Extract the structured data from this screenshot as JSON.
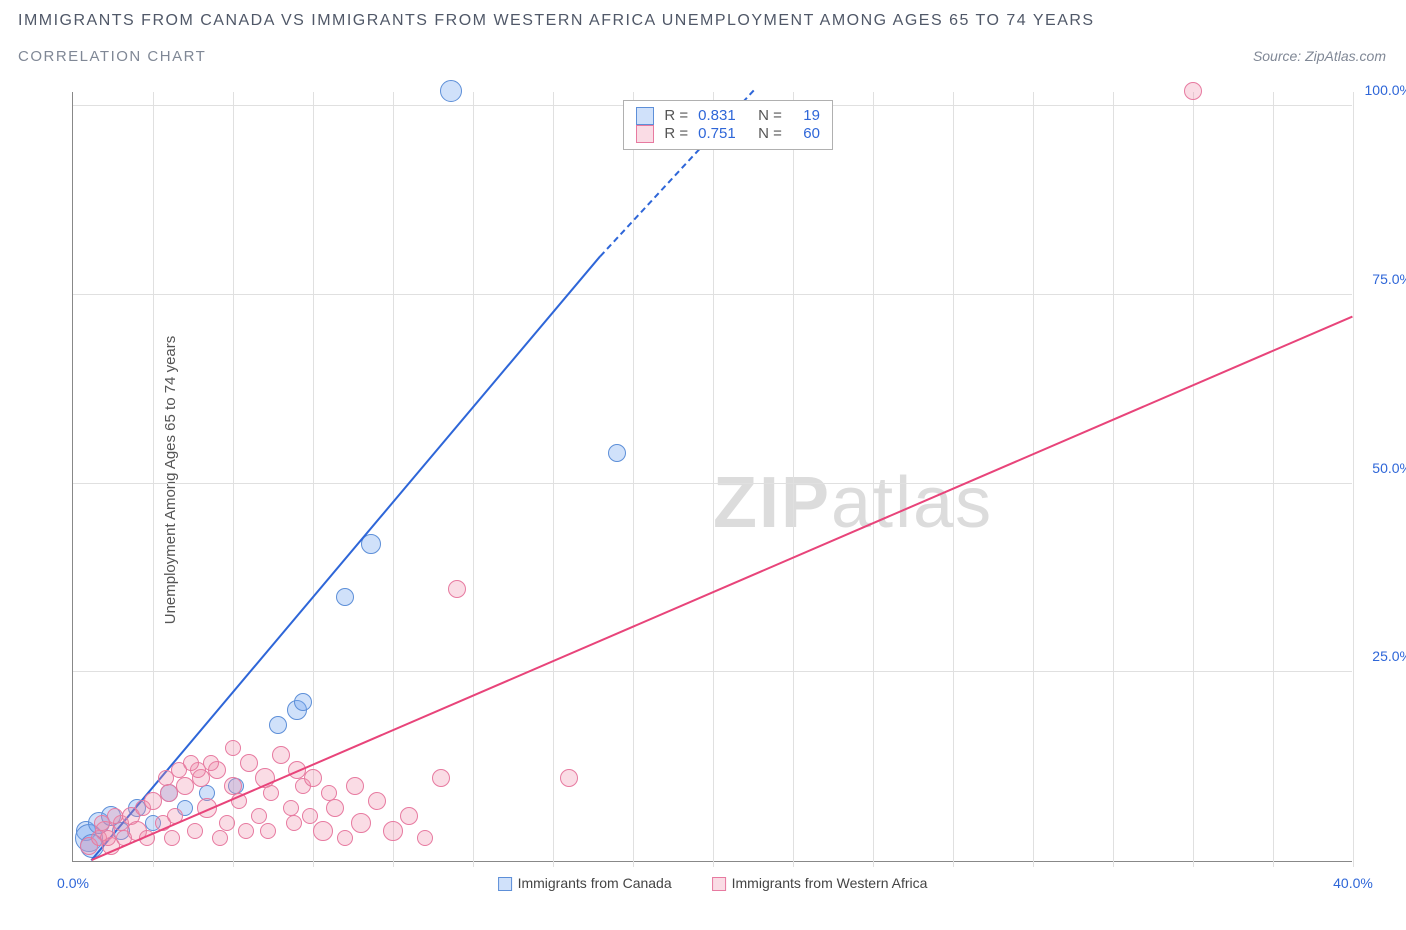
{
  "title": "IMMIGRANTS FROM CANADA VS IMMIGRANTS FROM WESTERN AFRICA UNEMPLOYMENT AMONG AGES 65 TO 74 YEARS",
  "subtitle": "CORRELATION CHART",
  "source_label": "Source:",
  "source_name": "ZipAtlas.com",
  "ylabel": "Unemployment Among Ages 65 to 74 years",
  "watermark_a": "ZIP",
  "watermark_b": "atlas",
  "chart": {
    "type": "scatter",
    "xlim": [
      0,
      40
    ],
    "ylim": [
      0,
      102
    ],
    "xtick_start": 0.0,
    "xtick_end": 40.0,
    "xtick_interval": 10,
    "ytick_values": [
      25,
      50,
      75,
      100
    ],
    "xtick_labels": {
      "0": "0.0%",
      "40": "40.0%"
    },
    "ytick_labels": {
      "25": "25.0%",
      "50": "50.0%",
      "75": "75.0%",
      "100": "100.0%"
    },
    "grid_color": "#e0e0e0",
    "background_color": "#ffffff",
    "axis_color": "#888888",
    "label_color": "#2e66d8"
  },
  "series": [
    {
      "name": "Immigrants from Canada",
      "color_fill": "rgba(120,170,240,0.35)",
      "color_stroke": "#5d8fd8",
      "trend_color": "#2e66d8",
      "R": "0.831",
      "N": "19",
      "trend": {
        "x0": 0.6,
        "y0": 0,
        "x1": 16.5,
        "y1": 80,
        "dash_x1": 21.3,
        "dash_y1": 104
      },
      "points": [
        {
          "x": 0.4,
          "y": 4,
          "r": 10
        },
        {
          "x": 0.5,
          "y": 3,
          "r": 14
        },
        {
          "x": 0.6,
          "y": 2,
          "r": 12
        },
        {
          "x": 0.8,
          "y": 5,
          "r": 11
        },
        {
          "x": 1.2,
          "y": 6,
          "r": 10
        },
        {
          "x": 1.5,
          "y": 4,
          "r": 9
        },
        {
          "x": 2.0,
          "y": 7,
          "r": 9
        },
        {
          "x": 2.5,
          "y": 5,
          "r": 8
        },
        {
          "x": 3.0,
          "y": 9,
          "r": 9
        },
        {
          "x": 3.5,
          "y": 7,
          "r": 8
        },
        {
          "x": 4.2,
          "y": 9,
          "r": 8
        },
        {
          "x": 6.4,
          "y": 18,
          "r": 9
        },
        {
          "x": 7.0,
          "y": 20,
          "r": 10
        },
        {
          "x": 7.2,
          "y": 21,
          "r": 9
        },
        {
          "x": 8.5,
          "y": 35,
          "r": 9
        },
        {
          "x": 9.3,
          "y": 42,
          "r": 10
        },
        {
          "x": 11.8,
          "y": 102,
          "r": 11
        },
        {
          "x": 17.0,
          "y": 54,
          "r": 9
        },
        {
          "x": 5.1,
          "y": 10,
          "r": 8
        }
      ]
    },
    {
      "name": "Immigrants from Western Africa",
      "color_fill": "rgba(240,140,170,0.30)",
      "color_stroke": "#e77aa0",
      "trend_color": "#e8447a",
      "R": "0.751",
      "N": "60",
      "trend": {
        "x0": 0.6,
        "y0": 0,
        "x1": 40.0,
        "y1": 72
      },
      "points": [
        {
          "x": 0.5,
          "y": 2,
          "r": 9
        },
        {
          "x": 0.8,
          "y": 3,
          "r": 8
        },
        {
          "x": 1.0,
          "y": 4,
          "r": 10
        },
        {
          "x": 1.2,
          "y": 2,
          "r": 9
        },
        {
          "x": 1.5,
          "y": 5,
          "r": 8
        },
        {
          "x": 1.8,
          "y": 6,
          "r": 9
        },
        {
          "x": 2.0,
          "y": 4,
          "r": 10
        },
        {
          "x": 2.2,
          "y": 7,
          "r": 8
        },
        {
          "x": 2.5,
          "y": 8,
          "r": 9
        },
        {
          "x": 2.8,
          "y": 5,
          "r": 8
        },
        {
          "x": 3.0,
          "y": 9,
          "r": 9
        },
        {
          "x": 3.2,
          "y": 6,
          "r": 8
        },
        {
          "x": 3.5,
          "y": 10,
          "r": 9
        },
        {
          "x": 3.8,
          "y": 4,
          "r": 8
        },
        {
          "x": 4.0,
          "y": 11,
          "r": 9
        },
        {
          "x": 4.2,
          "y": 7,
          "r": 10
        },
        {
          "x": 4.5,
          "y": 12,
          "r": 9
        },
        {
          "x": 4.8,
          "y": 5,
          "r": 8
        },
        {
          "x": 5.0,
          "y": 10,
          "r": 9
        },
        {
          "x": 5.2,
          "y": 8,
          "r": 8
        },
        {
          "x": 5.5,
          "y": 13,
          "r": 9
        },
        {
          "x": 5.8,
          "y": 6,
          "r": 8
        },
        {
          "x": 6.0,
          "y": 11,
          "r": 10
        },
        {
          "x": 6.2,
          "y": 9,
          "r": 8
        },
        {
          "x": 6.5,
          "y": 14,
          "r": 9
        },
        {
          "x": 6.8,
          "y": 7,
          "r": 8
        },
        {
          "x": 7.0,
          "y": 12,
          "r": 9
        },
        {
          "x": 7.2,
          "y": 10,
          "r": 8
        },
        {
          "x": 7.5,
          "y": 11,
          "r": 9
        },
        {
          "x": 7.8,
          "y": 4,
          "r": 10
        },
        {
          "x": 8.0,
          "y": 9,
          "r": 8
        },
        {
          "x": 8.2,
          "y": 7,
          "r": 9
        },
        {
          "x": 8.5,
          "y": 3,
          "r": 8
        },
        {
          "x": 8.8,
          "y": 10,
          "r": 9
        },
        {
          "x": 9.0,
          "y": 5,
          "r": 10
        },
        {
          "x": 9.5,
          "y": 8,
          "r": 9
        },
        {
          "x": 10.0,
          "y": 4,
          "r": 10
        },
        {
          "x": 10.5,
          "y": 6,
          "r": 9
        },
        {
          "x": 11.0,
          "y": 3,
          "r": 8
        },
        {
          "x": 11.5,
          "y": 11,
          "r": 9
        },
        {
          "x": 12.0,
          "y": 36,
          "r": 9
        },
        {
          "x": 15.5,
          "y": 11,
          "r": 9
        },
        {
          "x": 35.0,
          "y": 102,
          "r": 9
        },
        {
          "x": 2.3,
          "y": 3,
          "r": 8
        },
        {
          "x": 3.1,
          "y": 3,
          "r": 8
        },
        {
          "x": 4.6,
          "y": 3,
          "r": 8
        },
        {
          "x": 5.4,
          "y": 4,
          "r": 8
        },
        {
          "x": 6.1,
          "y": 4,
          "r": 8
        },
        {
          "x": 6.9,
          "y": 5,
          "r": 8
        },
        {
          "x": 7.4,
          "y": 6,
          "r": 8
        },
        {
          "x": 1.1,
          "y": 3,
          "r": 8
        },
        {
          "x": 1.6,
          "y": 3,
          "r": 8
        },
        {
          "x": 0.9,
          "y": 5,
          "r": 8
        },
        {
          "x": 1.3,
          "y": 6,
          "r": 8
        },
        {
          "x": 3.9,
          "y": 12,
          "r": 8
        },
        {
          "x": 4.3,
          "y": 13,
          "r": 8
        },
        {
          "x": 5.0,
          "y": 15,
          "r": 8
        },
        {
          "x": 2.9,
          "y": 11,
          "r": 8
        },
        {
          "x": 3.3,
          "y": 12,
          "r": 8
        },
        {
          "x": 3.7,
          "y": 13,
          "r": 8
        }
      ]
    }
  ],
  "corr_box": {
    "R_label": "R =",
    "N_label": "N ="
  }
}
